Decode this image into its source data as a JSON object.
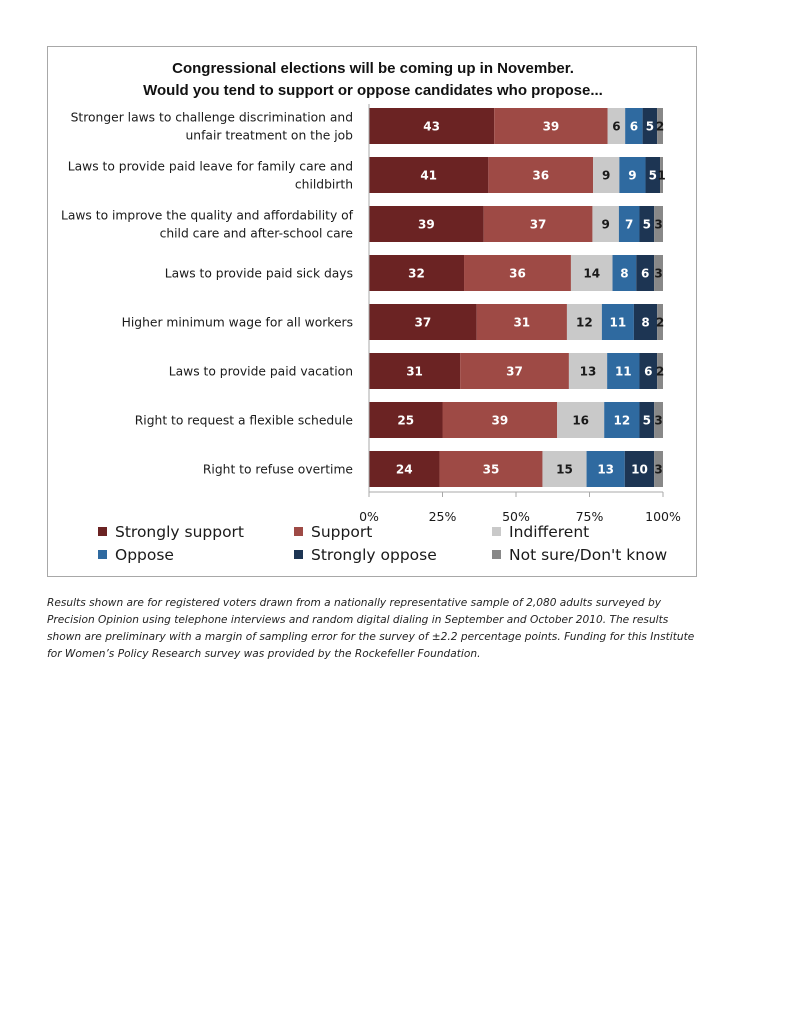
{
  "chart_data": {
    "type": "bar",
    "orientation": "horizontal",
    "stacked": true,
    "title": [
      "Congressional elections will be coming up in November.",
      "Would you tend to support or oppose candidates who propose..."
    ],
    "categories": [
      [
        "Stronger laws to challenge discrimination and",
        "unfair treatment on the job"
      ],
      [
        "Laws to provide paid leave for family care and",
        "childbirth"
      ],
      [
        "Laws to improve the quality and affordability of",
        "child care and after-school care"
      ],
      [
        "Laws to provide paid sick days"
      ],
      [
        "Higher minimum wage for all workers"
      ],
      [
        "Laws to provide paid vacation"
      ],
      [
        "Right to request  a flexible schedule"
      ],
      [
        "Right to refuse overtime"
      ]
    ],
    "series": [
      {
        "name": "Strongly support",
        "color": "#6b2323",
        "label_color": "#ffffff",
        "values": [
          43,
          41,
          39,
          32,
          37,
          31,
          25,
          24
        ]
      },
      {
        "name": "Support",
        "color": "#9e4a45",
        "label_color": "#ffffff",
        "values": [
          39,
          36,
          37,
          36,
          31,
          37,
          39,
          35
        ]
      },
      {
        "name": "Indifferent",
        "color": "#c9c9c9",
        "label_color": "#1a1a1a",
        "values": [
          6,
          9,
          9,
          14,
          12,
          13,
          16,
          15
        ]
      },
      {
        "name": "Oppose",
        "color": "#2f6aa0",
        "label_color": "#ffffff",
        "values": [
          6,
          9,
          7,
          8,
          11,
          11,
          12,
          13
        ]
      },
      {
        "name": "Strongly oppose",
        "color": "#1d3553",
        "label_color": "#ffffff",
        "values": [
          5,
          5,
          5,
          6,
          8,
          6,
          5,
          10
        ]
      },
      {
        "name": "Not sure/Don't know",
        "color": "#888888",
        "label_color": "#1a1a1a",
        "values": [
          2,
          1,
          3,
          3,
          2,
          2,
          3,
          3
        ]
      }
    ],
    "xlim": [
      0,
      100
    ],
    "xticks": [
      "0%",
      "25%",
      "50%",
      "75%",
      "100%"
    ],
    "grid": false,
    "legend_placement": "bottom"
  },
  "footnote": "Results shown are for registered voters drawn from a nationally representative sample of 2,080 adults surveyed by\nPrecision Opinion using telephone interviews and random digital dialing in September and October 2010. The results\nshown are preliminary with a margin of sampling error for the survey of ±2.2 percentage points. Funding for this Institute\nfor Women’s Policy Research survey was provided by the Rockefeller Foundation."
}
